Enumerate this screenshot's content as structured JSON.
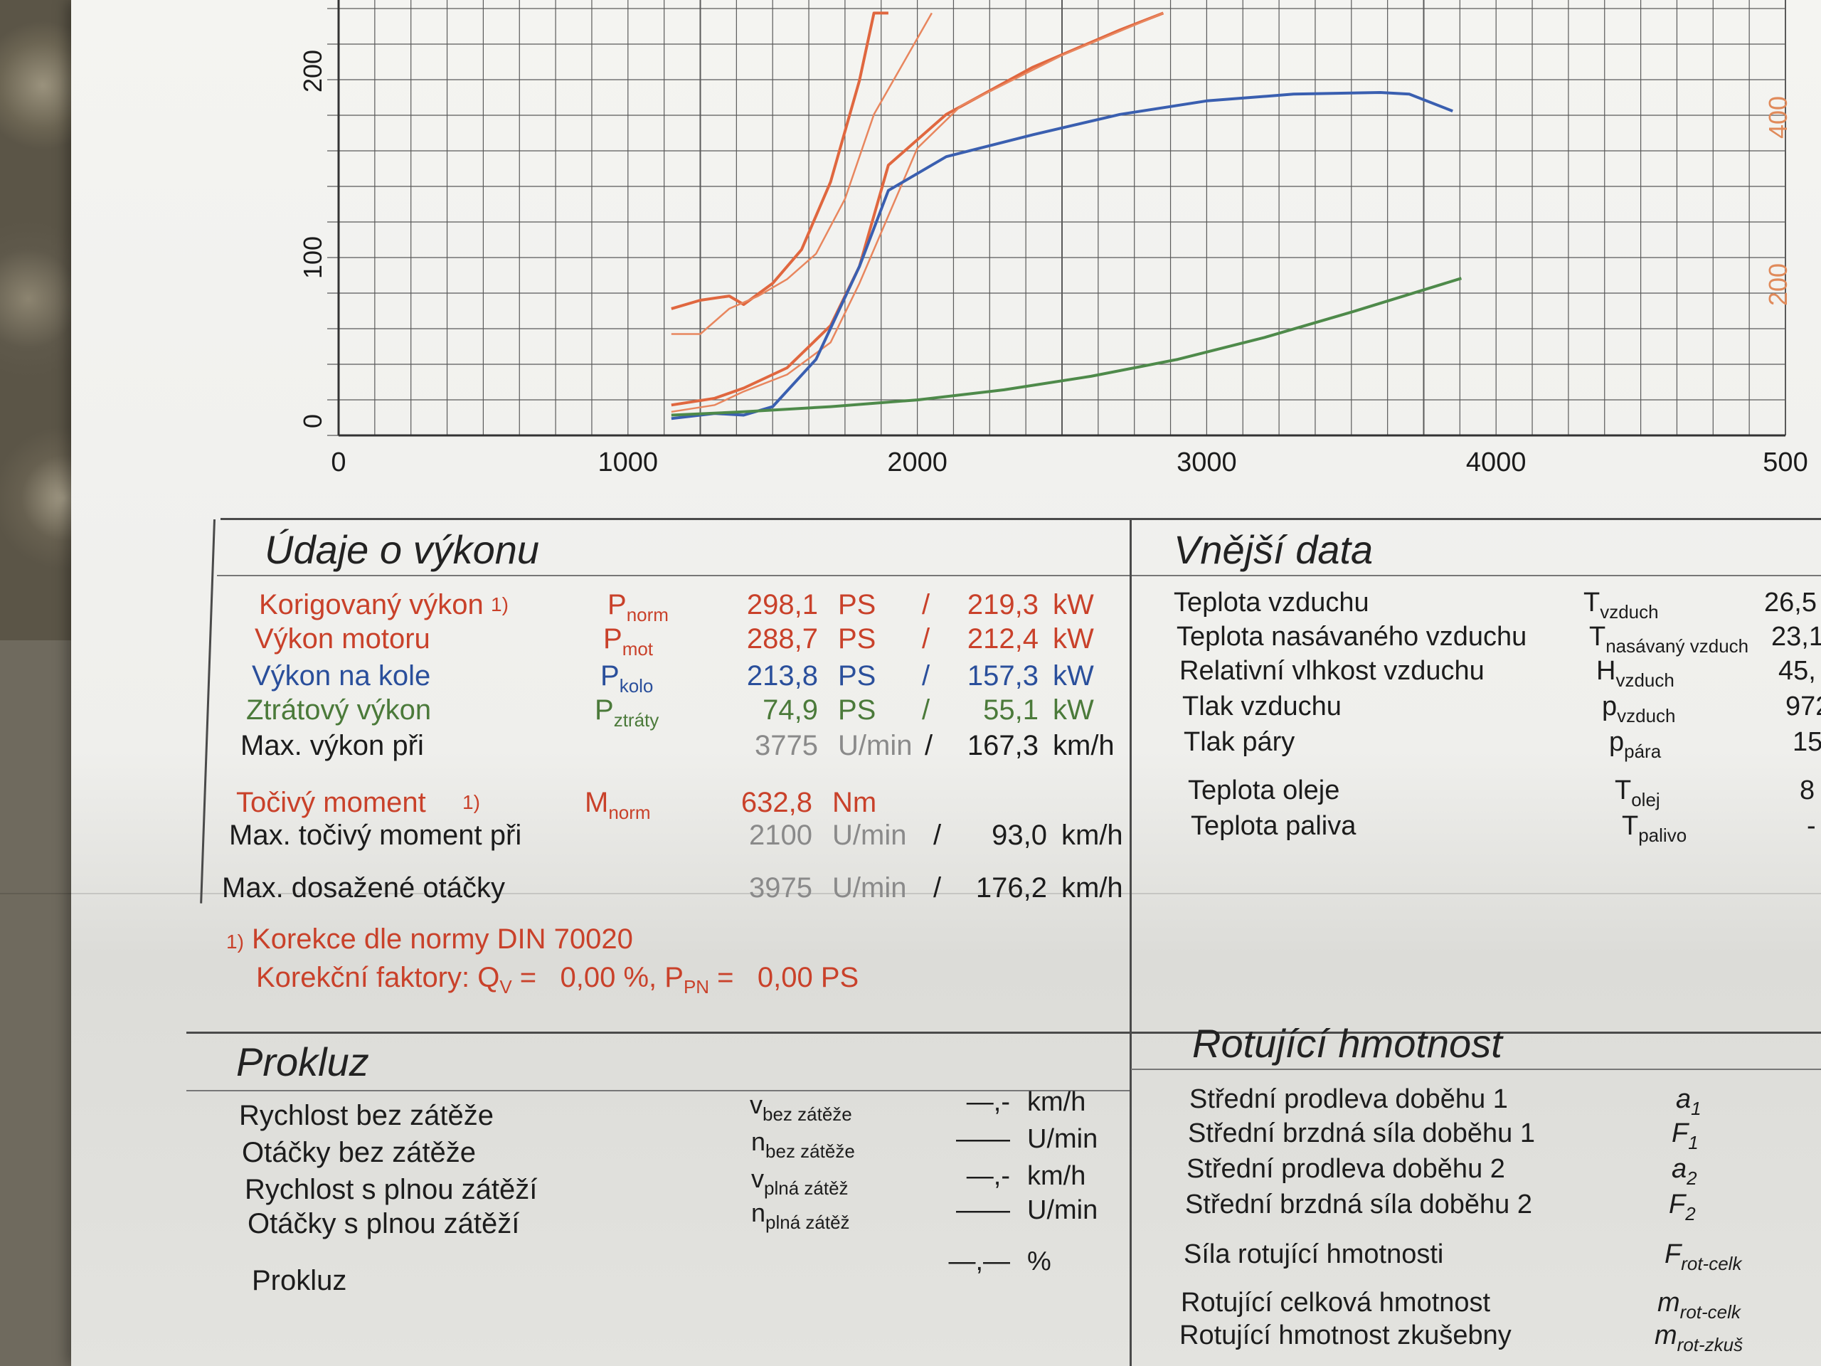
{
  "chart_data": {
    "type": "line",
    "x_ticks": [
      "0",
      "1000",
      "2000",
      "3000",
      "4000",
      "500"
    ],
    "y_left_ticks": [
      "0",
      "100",
      "200"
    ],
    "y_right_ticks": [
      "200",
      "400"
    ],
    "xlim": [
      0,
      5000
    ],
    "ylim_left": [
      0,
      250
    ],
    "ylim_right": [
      0,
      500
    ],
    "grid": true,
    "series": [
      {
        "color": "#e0673f",
        "x": [
          1150,
          1300,
          1400,
          1550,
          1700,
          1800,
          1900,
          2100,
          2400,
          2700,
          2850
        ],
        "y": [
          18,
          22,
          28,
          40,
          65,
          100,
          160,
          190,
          218,
          240,
          250
        ]
      },
      {
        "color": "#e8865e",
        "x": [
          1150,
          1300,
          1400,
          1550,
          1700,
          1800,
          1900,
          2000,
          2150,
          2500,
          2850
        ],
        "y": [
          14,
          18,
          26,
          36,
          55,
          90,
          130,
          170,
          195,
          225,
          250
        ]
      },
      {
        "color": "#e0673f",
        "x": [
          1150,
          1250,
          1350,
          1400,
          1500,
          1600,
          1700,
          1800,
          1850,
          1900
        ],
        "y": [
          150,
          160,
          165,
          155,
          180,
          220,
          300,
          420,
          500,
          500
        ]
      },
      {
        "color": "#e8865e",
        "x": [
          1150,
          1250,
          1350,
          1450,
          1550,
          1650,
          1750,
          1850,
          1950,
          2050
        ],
        "y": [
          120,
          120,
          150,
          165,
          185,
          215,
          280,
          380,
          440,
          500
        ]
      },
      {
        "color": "#3a5fb0",
        "x": [
          1150,
          1300,
          1400,
          1500,
          1650,
          1800,
          1900,
          2100,
          2400,
          2700,
          3000,
          3300,
          3600,
          3700,
          3850
        ],
        "y": [
          10,
          13,
          12,
          17,
          45,
          100,
          145,
          165,
          178,
          190,
          198,
          202,
          203,
          202,
          192
        ]
      },
      {
        "color": "#4e8a4a",
        "x": [
          1150,
          1400,
          1700,
          2000,
          2300,
          2600,
          2900,
          3200,
          3500,
          3880
        ],
        "y": [
          12,
          14,
          17,
          21,
          27,
          35,
          45,
          58,
          73,
          93
        ]
      }
    ]
  },
  "vykon": {
    "title": "Údaje o výkonu",
    "rows": [
      {
        "label": "Korigovaný výkon",
        "note": "1)",
        "sym": "P",
        "sub": "norm",
        "v1": "298,1",
        "u1": "PS",
        "sep": "/",
        "v2": "219,3",
        "u2": "kW"
      },
      {
        "label": "Výkon motoru",
        "sym": "P",
        "sub": "mot",
        "v1": "288,7",
        "u1": "PS",
        "sep": "/",
        "v2": "212,4",
        "u2": "kW"
      },
      {
        "label": "Výkon na kole",
        "sym": "P",
        "sub": "kolo",
        "v1": "213,8",
        "u1": "PS",
        "sep": "/",
        "v2": "157,3",
        "u2": "kW"
      },
      {
        "label": "Ztrátový výkon",
        "sym": "P",
        "sub": "ztráty",
        "v1": "74,9",
        "u1": "PS",
        "sep": "/",
        "v2": "55,1",
        "u2": "kW"
      },
      {
        "label": "Max. výkon při",
        "v1": "3775",
        "u1": "U/min",
        "sep": "/",
        "v2": "167,3",
        "u2": "km/h"
      },
      {
        "label": "Točivý moment",
        "note": "1)",
        "sym": "M",
        "sub": "norm",
        "v1": "632,8",
        "u1": "Nm"
      },
      {
        "label": "Max. točivý moment při",
        "v1": "2100",
        "u1": "U/min",
        "sep": "/",
        "v2": "93,0",
        "u2": "km/h"
      },
      {
        "label": "Max. dosažené otáčky",
        "v1": "3975",
        "u1": "U/min",
        "sep": "/",
        "v2": "176,2",
        "u2": "km/h"
      }
    ],
    "footnote1_num": "1)",
    "footnote1": "Korekce dle normy DIN 70020",
    "footnote2_a": "Korekční faktory: Q",
    "footnote2_sub": "V",
    "footnote2_b": " =   0,00 %, P",
    "footnote2_sub2": "PN",
    "footnote2_c": " =   0,00 PS"
  },
  "vnejsi": {
    "title": "Vnější data",
    "rows": [
      {
        "label": "Teplota vzduchu",
        "sym": "T",
        "sub": "vzduch",
        "val": "26,5"
      },
      {
        "label": "Teplota nasávaného vzduchu",
        "sym": "T",
        "sub": "nasávaný vzduch",
        "val": "23,1"
      },
      {
        "label": "Relativní vlhkost vzduchu",
        "sym": "H",
        "sub": "vzduch",
        "val": "45,"
      },
      {
        "label": "Tlak vzduchu",
        "sym": "p",
        "sub": "vzduch",
        "val": "972"
      },
      {
        "label": "Tlak páry",
        "sym": "p",
        "sub": "pára",
        "val": "15"
      },
      {
        "label": "Teplota oleje",
        "sym": "T",
        "sub": "olej",
        "val": "8"
      },
      {
        "label": "Teplota paliva",
        "sym": "T",
        "sub": "palivo",
        "val": "-"
      }
    ]
  },
  "prokluz": {
    "title": "Prokluz",
    "rows": [
      {
        "label": "Rychlost bez zátěže",
        "sym": "v",
        "sub": "bez zátěže",
        "val": "—,-",
        "unit": "km/h"
      },
      {
        "label": "Otáčky bez zátěže",
        "sym": "n",
        "sub": "bez zátěže",
        "val": "——",
        "unit": "U/min"
      },
      {
        "label": "Rychlost s plnou zátěží",
        "sym": "v",
        "sub": "plná zátěž",
        "val": "—,-",
        "unit": "km/h"
      },
      {
        "label": "Otáčky s plnou zátěží",
        "sym": "n",
        "sub": "plná zátěž",
        "val": "——",
        "unit": "U/min"
      },
      {
        "label": "Prokluz",
        "val": "—,—",
        "unit": "%"
      }
    ]
  },
  "rotujici": {
    "title": "Rotující hmotnost",
    "rows": [
      {
        "label": "Střední prodleva doběhu 1",
        "sym": "a",
        "sub": "1"
      },
      {
        "label": "Střední brzdná síla doběhu 1",
        "sym": "F",
        "sub": "1"
      },
      {
        "label": "Střední prodleva doběhu 2",
        "sym": "a",
        "sub": "2"
      },
      {
        "label": "Střední brzdná síla doběhu 2",
        "sym": "F",
        "sub": "2"
      },
      {
        "label": "Síla rotující hmotnosti",
        "sym": "F",
        "sub": "rot-celk"
      },
      {
        "label": "Rotující celková hmotnost",
        "sym": "m",
        "sub": "rot-celk"
      },
      {
        "label": "Rotující hmotnost zkušebny",
        "sym": "m",
        "sub": "rot-zkuš"
      }
    ]
  }
}
